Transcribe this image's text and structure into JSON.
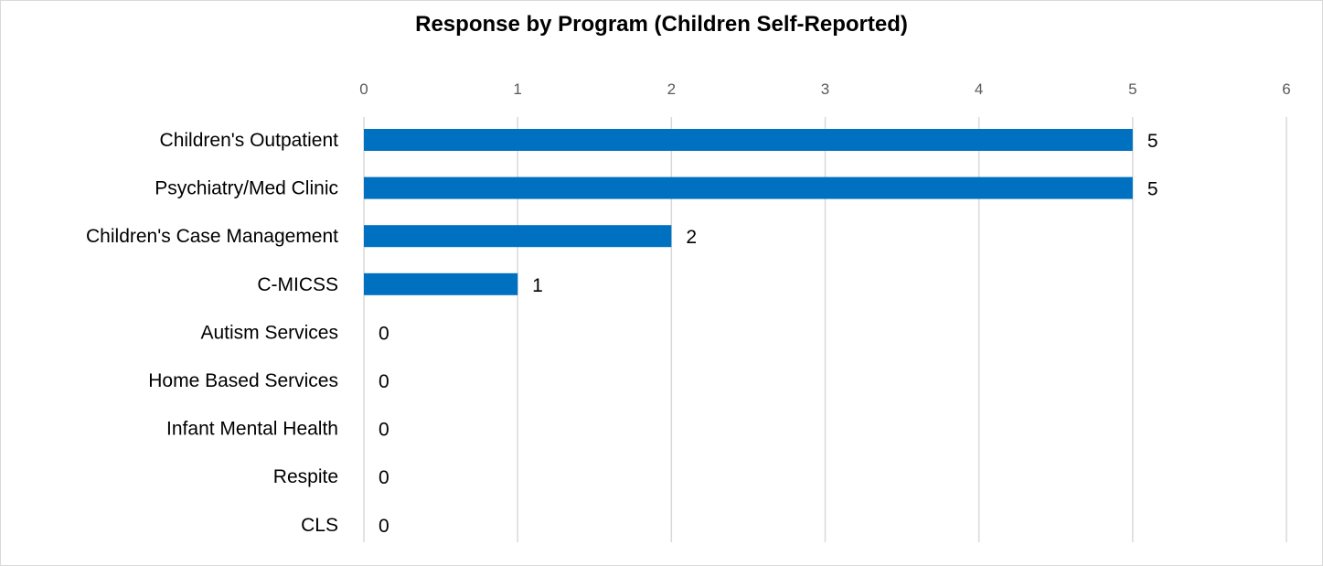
{
  "chart_data": {
    "type": "bar",
    "orientation": "horizontal",
    "title": "Response by Program (Children Self-Reported)",
    "xlabel": "",
    "ylabel": "",
    "categories": [
      "Children's Outpatient",
      "Psychiatry/Med Clinic",
      "Children's Case Management",
      "C-MICSS",
      "Autism Services",
      "Home Based Services",
      "Infant Mental Health",
      "Respite",
      "CLS"
    ],
    "values": [
      5,
      5,
      2,
      1,
      0,
      0,
      0,
      0,
      0
    ],
    "xlim": [
      0,
      6
    ],
    "x_ticks": [
      "0",
      "1",
      "2",
      "3",
      "4",
      "5",
      "6"
    ],
    "axis_position": "top",
    "grid": true,
    "legend": "none",
    "data_labels": true,
    "colors": {
      "bar": "#0070C0",
      "grid": "#D9D9D9",
      "tick_text": "#595959",
      "label_text": "#000000"
    }
  }
}
